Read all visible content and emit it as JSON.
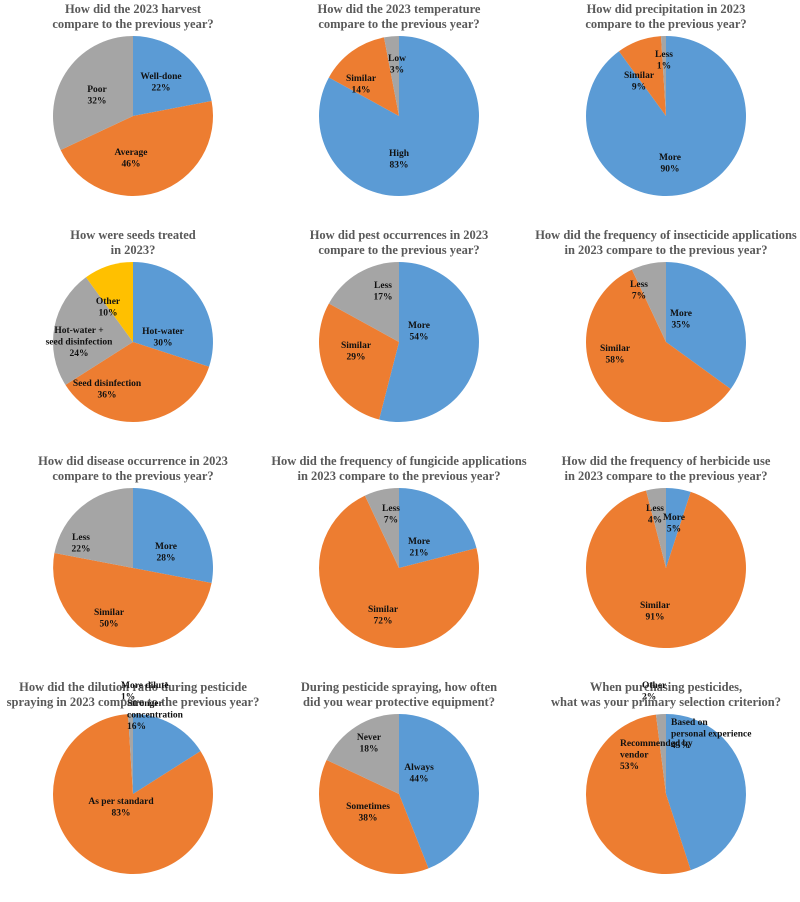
{
  "colors": {
    "blue": "#5B9BD5",
    "orange": "#ED7D31",
    "gray": "#A5A5A5",
    "yellow": "#FFC000"
  },
  "chart_data": [
    {
      "type": "pie",
      "title": [
        "How did the 2023 harvest",
        "compare to the previous year?"
      ],
      "slices": [
        {
          "name": "Well-done",
          "value": 22,
          "label": [
            "Well-done",
            "22%"
          ],
          "color": "blue"
        },
        {
          "name": "Average",
          "value": 46,
          "label": [
            "Average",
            "46%"
          ],
          "color": "orange"
        },
        {
          "name": "Poor",
          "value": 32,
          "label": [
            "Poor",
            "32%"
          ],
          "color": "gray"
        }
      ]
    },
    {
      "type": "pie",
      "title": [
        "How did the 2023 temperature",
        "compare to the previous year?"
      ],
      "slices": [
        {
          "name": "High",
          "value": 83,
          "label": [
            "High",
            "83%"
          ],
          "color": "blue"
        },
        {
          "name": "Similar",
          "value": 14,
          "label": [
            "Similar",
            "14%"
          ],
          "color": "orange"
        },
        {
          "name": "Low",
          "value": 3,
          "label": [
            "Low",
            "3%"
          ],
          "color": "gray"
        }
      ]
    },
    {
      "type": "pie",
      "title": [
        "How did precipitation in 2023",
        "compare to the previous year?"
      ],
      "slices": [
        {
          "name": "More",
          "value": 90,
          "label": [
            "More",
            "90%"
          ],
          "color": "blue"
        },
        {
          "name": "Similar",
          "value": 9,
          "label": [
            "Similar",
            "9%"
          ],
          "color": "orange"
        },
        {
          "name": "Less",
          "value": 1,
          "label": [
            "Less",
            "1%"
          ],
          "color": "gray"
        }
      ]
    },
    {
      "type": "pie",
      "title": [
        "How were seeds treated",
        "in 2023?"
      ],
      "slices": [
        {
          "name": "Hot-water",
          "value": 30,
          "label": [
            "Hot-water",
            "30%"
          ],
          "color": "blue"
        },
        {
          "name": "Seed disinfection",
          "value": 36,
          "label": [
            "Seed disinfection",
            "36%"
          ],
          "color": "orange"
        },
        {
          "name": "Hot-water + seed disinfection",
          "value": 24,
          "label": [
            "Hot-water +",
            "seed disinfection",
            "24%"
          ],
          "color": "gray"
        },
        {
          "name": "Other",
          "value": 10,
          "label": [
            "Other",
            "10%"
          ],
          "color": "yellow"
        }
      ]
    },
    {
      "type": "pie",
      "title": [
        "How did pest occurrences in 2023",
        "compare to the previous year?"
      ],
      "slices": [
        {
          "name": "More",
          "value": 54,
          "label": [
            "More",
            "54%"
          ],
          "color": "blue"
        },
        {
          "name": "Similar",
          "value": 29,
          "label": [
            "Similar",
            "29%"
          ],
          "color": "orange"
        },
        {
          "name": "Less",
          "value": 17,
          "label": [
            "Less",
            "17%"
          ],
          "color": "gray"
        }
      ]
    },
    {
      "type": "pie",
      "title": [
        "How did the frequency of insecticide applications",
        "in 2023 compare to the previous year?"
      ],
      "slices": [
        {
          "name": "More",
          "value": 35,
          "label": [
            "More",
            "35%"
          ],
          "color": "blue"
        },
        {
          "name": "Similar",
          "value": 58,
          "label": [
            "Similar",
            "58%"
          ],
          "color": "orange"
        },
        {
          "name": "Less",
          "value": 7,
          "label": [
            "Less",
            "7%"
          ],
          "color": "gray"
        }
      ]
    },
    {
      "type": "pie",
      "title": [
        "How did disease occurrence in 2023",
        "compare to the previous year?"
      ],
      "slices": [
        {
          "name": "More",
          "value": 28,
          "label": [
            "More",
            "28%"
          ],
          "color": "blue"
        },
        {
          "name": "Similar",
          "value": 50,
          "label": [
            "Similar",
            "50%"
          ],
          "color": "orange"
        },
        {
          "name": "Less",
          "value": 22,
          "label": [
            "Less",
            "22%"
          ],
          "color": "gray"
        }
      ]
    },
    {
      "type": "pie",
      "title": [
        "How did the frequency of fungicide applications",
        "in 2023 compare to the previous year?"
      ],
      "slices": [
        {
          "name": "More",
          "value": 21,
          "label": [
            "More",
            "21%"
          ],
          "color": "blue"
        },
        {
          "name": "Similar",
          "value": 72,
          "label": [
            "Similar",
            "72%"
          ],
          "color": "orange"
        },
        {
          "name": "Less",
          "value": 7,
          "label": [
            "Less",
            "7%"
          ],
          "color": "gray"
        }
      ]
    },
    {
      "type": "pie",
      "title": [
        "How did the frequency of herbicide use",
        "in 2023 compare to the previous year?"
      ],
      "slices": [
        {
          "name": "More",
          "value": 5,
          "label": [
            "More",
            "5%"
          ],
          "color": "blue"
        },
        {
          "name": "Similar",
          "value": 91,
          "label": [
            "Similar",
            "91%"
          ],
          "color": "orange"
        },
        {
          "name": "Less",
          "value": 4,
          "label": [
            "Less",
            "4%"
          ],
          "color": "gray"
        }
      ]
    },
    {
      "type": "pie",
      "title": [
        "How did the dilution ratio during pesticide",
        "spraying in 2023 compare to the previous year?"
      ],
      "slices": [
        {
          "name": "Stronger concentration",
          "value": 16,
          "label": [
            "Stronger",
            "concentration",
            "16%"
          ],
          "color": "blue"
        },
        {
          "name": "As per standard",
          "value": 83,
          "label": [
            "As per standard",
            "83%"
          ],
          "color": "orange"
        },
        {
          "name": "More dilute",
          "value": 1,
          "label": [
            "More dilute",
            "1%"
          ],
          "color": "gray"
        }
      ]
    },
    {
      "type": "pie",
      "title": [
        "During pesticide spraying, how often",
        "did you wear protective equipment?"
      ],
      "slices": [
        {
          "name": "Always",
          "value": 44,
          "label": [
            "Always",
            "44%"
          ],
          "color": "blue"
        },
        {
          "name": "Sometimes",
          "value": 38,
          "label": [
            "Sometimes",
            "38%"
          ],
          "color": "orange"
        },
        {
          "name": "Never",
          "value": 18,
          "label": [
            "Never",
            "18%"
          ],
          "color": "gray"
        }
      ]
    },
    {
      "type": "pie",
      "title": [
        "When purchasing pesticides,",
        "what was your primary selection criterion?"
      ],
      "slices": [
        {
          "name": "Based on personal experience",
          "value": 45,
          "label": [
            "Based on",
            "personal experience",
            "45%"
          ],
          "color": "blue"
        },
        {
          "name": "Recommended by vendor",
          "value": 53,
          "label": [
            "Recommended by",
            "vendor",
            "53%"
          ],
          "color": "orange"
        },
        {
          "name": "Other",
          "value": 2,
          "label": [
            "Other",
            "2%"
          ],
          "color": "gray"
        }
      ]
    }
  ]
}
